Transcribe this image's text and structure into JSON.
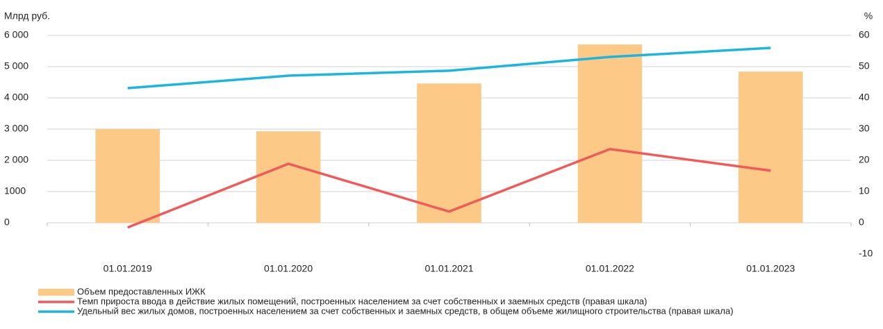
{
  "chart_data": {
    "type": "bar_line",
    "y_label": "Млрд руб.",
    "y2_label": "%",
    "categories": [
      "01.01.2019",
      "01.01.2020",
      "01.01.2021",
      "01.01.2022",
      "01.01.2023"
    ],
    "series": [
      {
        "name": "Объем предоставленных ИЖК",
        "type": "bar",
        "color": "#fdc987",
        "values": [
          3000,
          2930,
          4460,
          5710,
          4840
        ]
      },
      {
        "name": "Темп прироста ввода в действие жилых помещений, построенных населением за счет собственных и заемных средств (правая шкала)",
        "type": "line",
        "axis": "y2",
        "color": "#f25a5a",
        "values": [
          -1.5,
          18.9,
          3.6,
          23.6,
          16.7
        ]
      },
      {
        "name": "Удельный вес жилых домов, построенных населением за счет собственных и заемных средств, в общем объеме жилищного строительства (правая шкала)",
        "type": "line",
        "axis": "y2",
        "color": "#1cb5e0",
        "values": [
          43.1,
          47.1,
          48.7,
          53.1,
          56
        ]
      }
    ],
    "ylim": [
      -1000,
      6000
    ],
    "yticks": [
      0,
      {
        "value": 1000,
        "label": "1000"
      },
      {
        "value": 2000,
        "label": "2 000"
      },
      {
        "value": 3000,
        "label": "3 000"
      },
      {
        "value": 4000,
        "label": "4 000"
      },
      {
        "value": 5000,
        "label": "5 000"
      },
      {
        "value": 6000,
        "label": "6 000"
      }
    ],
    "y2lim": [
      -10,
      60
    ],
    "y2ticks": [
      -10,
      0,
      10,
      20,
      30,
      40,
      50,
      60
    ],
    "grid": true
  }
}
